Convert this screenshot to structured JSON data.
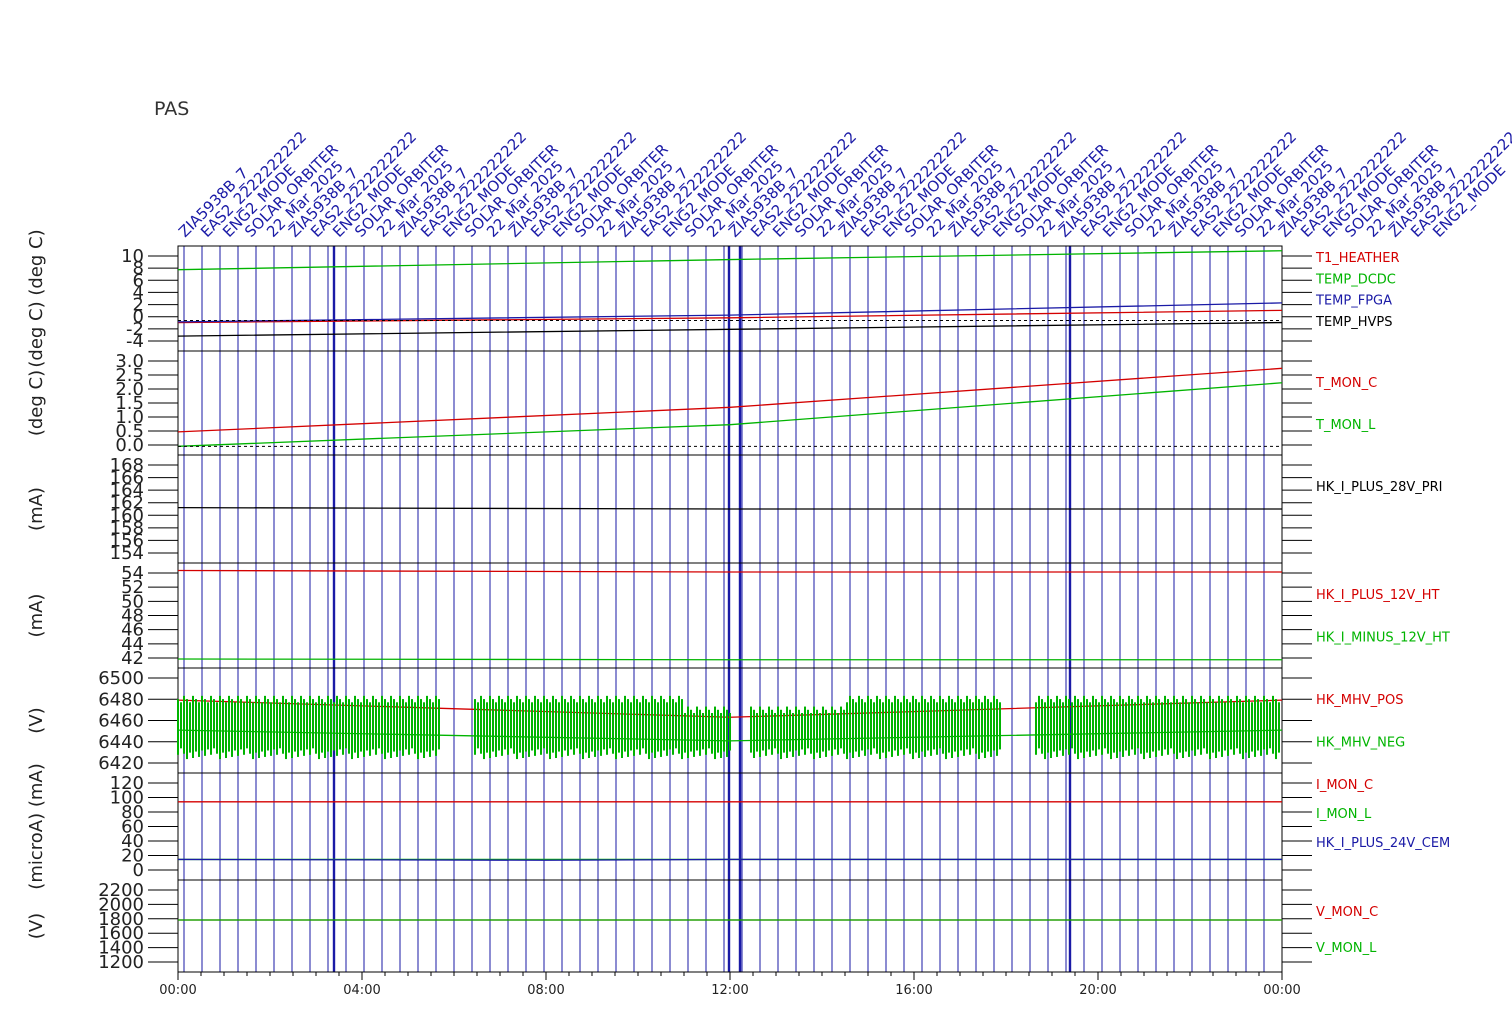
{
  "header": {
    "instrument": "PAS"
  },
  "colors": {
    "black": "#000000",
    "red": "#d40000",
    "green": "#00b400",
    "blue": "#1a1aa6"
  },
  "mode_labels": [
    "ZIA5938B_7",
    "EAS2_2222222222",
    "ENG2_MODE",
    "SOLAR_ORBITER",
    "22_Mar_2025"
  ],
  "x_axis": {
    "ticks": [
      "00:00",
      "04:00",
      "08:00",
      "12:00",
      "16:00",
      "20:00",
      "00:00"
    ]
  },
  "chart_data": [
    {
      "type": "line",
      "ylabel": "(deg C) (deg C)",
      "ytick_labels": [
        "10",
        "8",
        "6",
        "4",
        "2",
        "0",
        "-2",
        "-4"
      ],
      "ylim": [
        -4.5,
        11
      ],
      "series": [
        {
          "name": "T1_HEATHER",
          "color": "red",
          "points": [
            [
              0,
              -0.3
            ],
            [
              12,
              0.4
            ],
            [
              24,
              1.5
            ]
          ]
        },
        {
          "name": "TEMP_DCDC",
          "color": "green",
          "points": [
            [
              0,
              7.5
            ],
            [
              12,
              9.0
            ],
            [
              24,
              10.3
            ]
          ]
        },
        {
          "name": "TEMP_FPGA",
          "color": "blue",
          "points": [
            [
              0,
              -0.2
            ],
            [
              12,
              0.8
            ],
            [
              24,
              2.6
            ]
          ]
        },
        {
          "name": "TEMP_HVPS",
          "color": "black",
          "points": [
            [
              0,
              -2.3
            ],
            [
              12,
              -1.3
            ],
            [
              24,
              -0.3
            ]
          ]
        }
      ]
    },
    {
      "type": "line",
      "ylabel": "(deg C)",
      "ytick_labels": [
        "3.0",
        "2.5",
        "2.0",
        "1.5",
        "1.0",
        "0.5",
        "0.0"
      ],
      "ylim": [
        -0.3,
        3.3
      ],
      "series": [
        {
          "name": "T_MON_C",
          "color": "red",
          "points": [
            [
              0,
              0.5
            ],
            [
              12,
              1.35
            ],
            [
              24,
              2.7
            ]
          ]
        },
        {
          "name": "T_MON_L",
          "color": "green",
          "points": [
            [
              0,
              0.0
            ],
            [
              12,
              0.75
            ],
            [
              24,
              2.2
            ]
          ]
        }
      ]
    },
    {
      "type": "line",
      "ylabel": "(mA)",
      "ytick_labels": [
        "168",
        "166",
        "164",
        "162",
        "160",
        "158",
        "156",
        "154"
      ],
      "ylim": [
        153,
        169
      ],
      "series": [
        {
          "name": "HK_I_PLUS_28V_PRI",
          "color": "black",
          "points": [
            [
              0,
              161.2
            ],
            [
              12,
              161.0
            ],
            [
              24,
              161.0
            ]
          ]
        }
      ]
    },
    {
      "type": "line",
      "ylabel": "(mA)",
      "ytick_labels": [
        "54",
        "52",
        "50",
        "48",
        "46",
        "44",
        "42"
      ],
      "ylim": [
        41,
        55
      ],
      "series": [
        {
          "name": "HK_I_PLUS_12V_HT",
          "color": "red",
          "points": [
            [
              0,
              54.0
            ],
            [
              12,
              53.8
            ],
            [
              24,
              53.8
            ]
          ]
        },
        {
          "name": "HK_I_MINUS_12V_HT",
          "color": "green",
          "points": [
            [
              0,
              42.2
            ],
            [
              12,
              42.1
            ],
            [
              24,
              42.1
            ]
          ]
        }
      ]
    },
    {
      "type": "line",
      "ylabel": "(V)",
      "ytick_labels": [
        "6500",
        "6480",
        "6460",
        "6440",
        "6420"
      ],
      "ylim": [
        6410,
        6508
      ],
      "series": [
        {
          "name": "HK_MHV_POS",
          "color": "red",
          "points": [
            [
              0,
              6478
            ],
            [
              12,
              6462
            ],
            [
              24,
              6478
            ]
          ]
        },
        {
          "name": "HK_MHV_NEG",
          "color": "green",
          "points": [
            [
              0,
              6450
            ],
            [
              12,
              6440
            ],
            [
              24,
              6450
            ]
          ]
        }
      ]
    },
    {
      "type": "line",
      "ylabel": "(microA) (mA)",
      "ytick_labels": [
        "120",
        "100",
        "80",
        "60",
        "40",
        "20",
        "0"
      ],
      "ylim": [
        -5,
        125
      ],
      "series": [
        {
          "name": "I_MON_C",
          "color": "red",
          "points": [
            [
              0,
              90
            ],
            [
              12,
              90
            ],
            [
              24,
              90
            ]
          ]
        },
        {
          "name": "I_MON_L",
          "color": "green",
          "points": [
            [
              0,
              20
            ],
            [
              12,
              20
            ],
            [
              24,
              20
            ]
          ]
        },
        {
          "name": "HK_I_PLUS_24V_CEM",
          "color": "blue",
          "points": [
            [
              0,
              20
            ],
            [
              8,
              19
            ],
            [
              12,
              20
            ],
            [
              24,
              20
            ]
          ]
        }
      ]
    },
    {
      "type": "line",
      "ylabel": "(V)",
      "ytick_labels": [
        "2200",
        "2000",
        "1800",
        "1600",
        "1400",
        "1200"
      ],
      "ylim": [
        1150,
        2300
      ],
      "series": [
        {
          "name": "V_MON_C",
          "color": "red",
          "points": [
            [
              0,
              1800
            ],
            [
              12,
              1800
            ],
            [
              24,
              1800
            ]
          ]
        },
        {
          "name": "V_MON_L",
          "color": "green",
          "points": [
            [
              0,
              1800
            ],
            [
              12,
              1800
            ],
            [
              24,
              1800
            ]
          ]
        }
      ]
    }
  ]
}
